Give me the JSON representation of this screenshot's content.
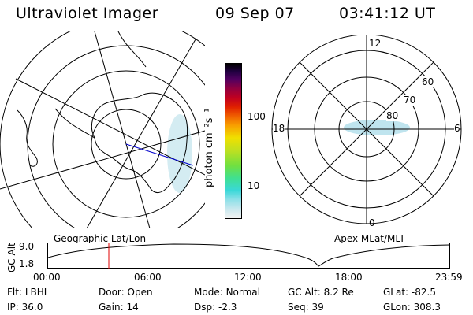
{
  "header": {
    "instrument": "Ultraviolet Imager",
    "date": "09 Sep 07",
    "time": "03:41:12 UT"
  },
  "colorbar": {
    "unit_label": "photon cm⁻²s⁻¹",
    "ticks": [
      "100",
      "10"
    ],
    "colors": [
      "#f3f3f3",
      "#c8e8ee",
      "#8ee0e8",
      "#3ad8d8",
      "#40e090",
      "#70e040",
      "#c0e020",
      "#f0e000",
      "#f8a000",
      "#f06000",
      "#e02000",
      "#c00020",
      "#900040",
      "#500060",
      "#200040",
      "#000000"
    ]
  },
  "left_map": {
    "label": "Geographic Lat/Lon"
  },
  "right_map": {
    "label": "Apex MLat/MLT",
    "mlt_labels": {
      "top": "12",
      "bottom": "0",
      "left": "18",
      "right": "6"
    },
    "lat_labels": [
      "60",
      "70",
      "80"
    ]
  },
  "altitude_plot": {
    "ylabel": "GC Alt",
    "yticks": [
      "9.0",
      "1.8"
    ],
    "xticks": [
      "00:00",
      "06:00",
      "12:00",
      "18:00",
      "23:59"
    ],
    "marker_time": "03:41",
    "marker_color": "#e00000"
  },
  "info_rows": [
    [
      {
        "label": "Flt:",
        "value": "LBHL"
      },
      {
        "label": "Door:",
        "value": "Open"
      },
      {
        "label": "Mode:",
        "value": "Normal"
      },
      {
        "label": "GC Alt:",
        "value": "8.2 Re"
      },
      {
        "label": "GLat:",
        "value": "-82.5"
      }
    ],
    [
      {
        "label": "IP:",
        "value": "36.0"
      },
      {
        "label": "Gain:",
        "value": "14"
      },
      {
        "label": "Dsp:",
        "value": "-2.3"
      },
      {
        "label": "Seq:",
        "value": "39"
      },
      {
        "label": "GLon:",
        "value": "308.3"
      }
    ]
  ]
}
